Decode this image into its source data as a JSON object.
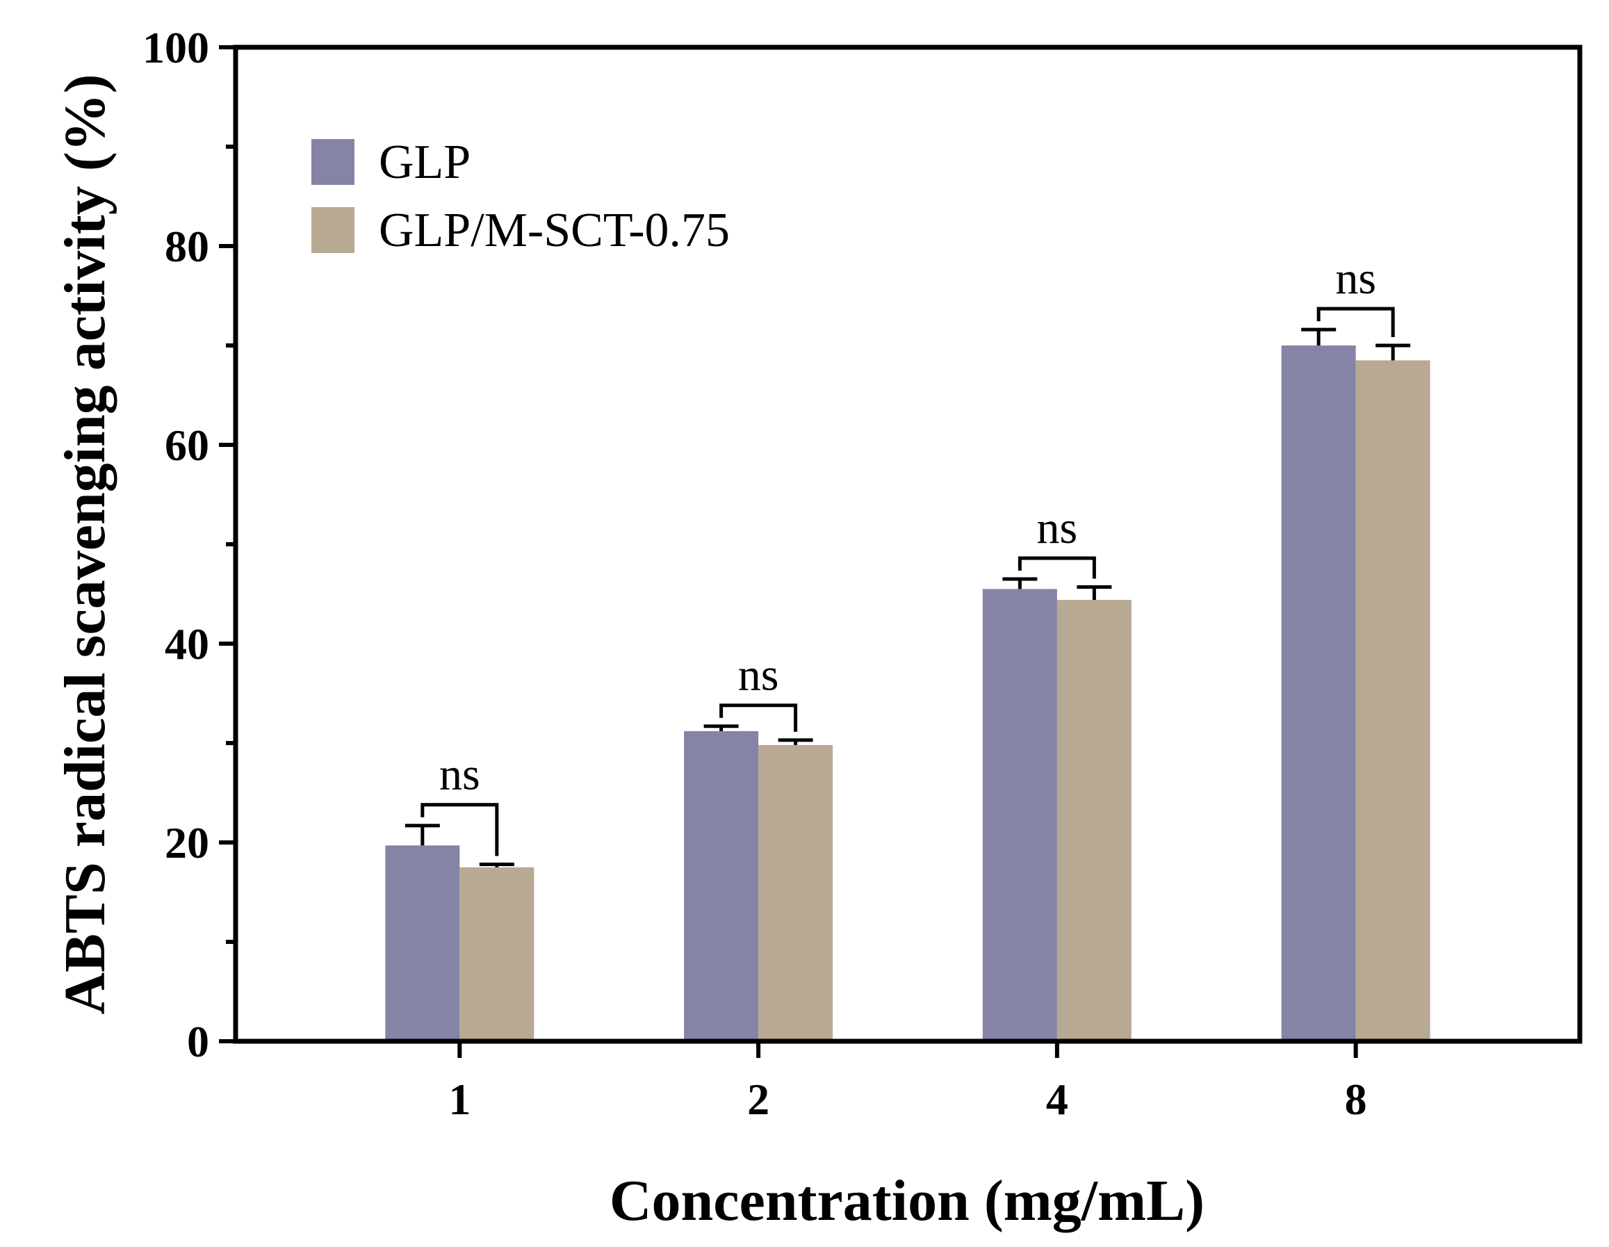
{
  "chart_data": {
    "type": "bar",
    "title": "",
    "xlabel": "Concentration (mg/mL)",
    "ylabel": "ABTS radical scavenging activity (%)",
    "ylim": [
      0,
      100
    ],
    "yticks": [
      "0",
      "20",
      "40",
      "60",
      "80",
      "100"
    ],
    "categories": [
      "1",
      "2",
      "4",
      "8"
    ],
    "series": [
      {
        "name": "GLP",
        "color": "#8584a6",
        "values": [
          19.7,
          31.2,
          45.5,
          70.0
        ],
        "errors": [
          2.0,
          0.5,
          1.0,
          1.6
        ]
      },
      {
        "name": "GLP/M-SCT-0.75",
        "color": "#b8a993",
        "values": [
          17.5,
          29.8,
          44.4,
          68.5
        ],
        "errors": [
          0.3,
          0.5,
          1.3,
          1.5
        ]
      }
    ],
    "significance": [
      "ns",
      "ns",
      "ns",
      "ns"
    ],
    "legend_position": "top-left",
    "grid": false
  }
}
